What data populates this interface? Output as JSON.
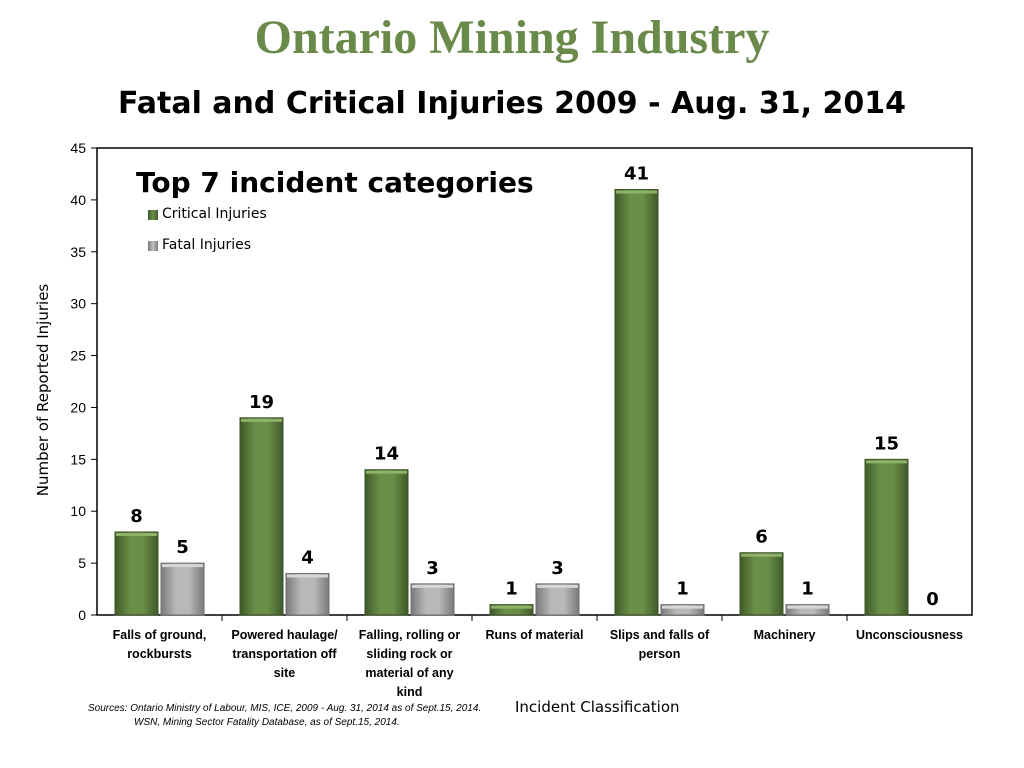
{
  "header": {
    "title": "Ontario Mining Industry",
    "subtitle": "Fatal and Critical Injuries 2009 - Aug. 31, 2014"
  },
  "chart_data": {
    "type": "bar",
    "title": "Top 7 incident categories",
    "xlabel": "Incident Classification",
    "ylabel": "Number of Reported Injuries",
    "ylim": [
      0,
      45
    ],
    "yticks": [
      "0",
      "5",
      "10",
      "15",
      "20",
      "25",
      "30",
      "35",
      "40",
      "45"
    ],
    "grid": false,
    "legend_position": "top-left",
    "categories": [
      "Falls of ground, rockbursts",
      "Powered haulage/ transportation off site",
      "Falling, rolling or sliding rock or material of any kind",
      "Runs of material",
      "Slips and falls of person",
      "Machinery",
      "Unconsciousness"
    ],
    "series": [
      {
        "name": "Critical Injuries",
        "color": "#5e8040",
        "values": [
          8,
          19,
          14,
          1,
          41,
          6,
          15
        ]
      },
      {
        "name": "Fatal Injuries",
        "color": "#a6a6a6",
        "values": [
          5,
          4,
          3,
          3,
          1,
          1,
          0
        ]
      }
    ]
  },
  "sources": {
    "line1": "Sources:  Ontario Ministry of Labour, MIS,  ICE, 2009 - Aug. 31, 2014  as of Sept.15, 2014.",
    "line2": "WSN, Mining Sector Fatality Database, as of Sept.15, 2014."
  }
}
